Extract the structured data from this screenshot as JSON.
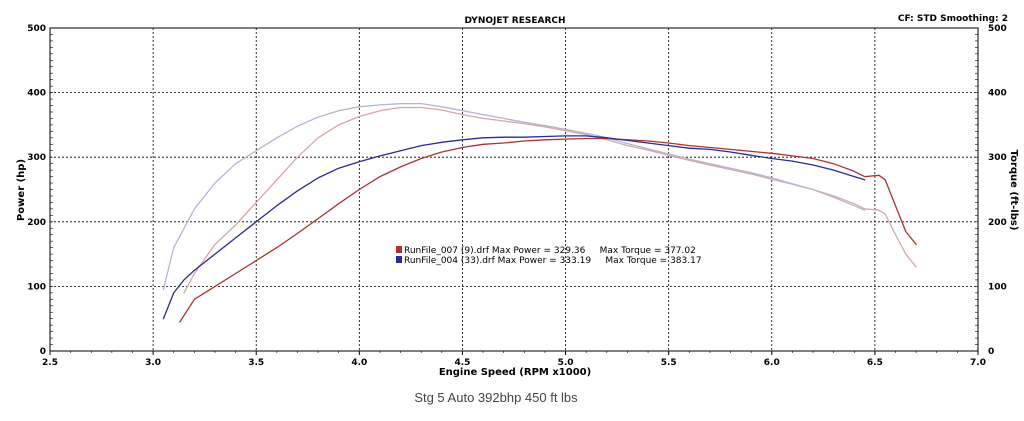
{
  "header": {
    "title": "DYNOJET RESEARCH",
    "settings": "CF: STD  Smoothing: 2"
  },
  "caption": "Stg 5 Auto 392bhp 450 ft lbs",
  "colors": {
    "run1_power": "#b03030",
    "run1_torque": "#d9a6a6",
    "run2_power": "#2a2a9a",
    "run2_torque": "#b4b4d8",
    "grid": "#000000",
    "border": "#000000"
  },
  "chart_data": {
    "type": "line",
    "title": "DYNOJET RESEARCH",
    "xlabel": "Engine Speed (RPM x1000)",
    "ylabel": "Power (hp)",
    "y2label": "Torque (ft-lbs)",
    "xlim": [
      2.5,
      7.0
    ],
    "ylim": [
      0,
      500
    ],
    "y2lim": [
      0,
      500
    ],
    "x_ticks": [
      "2.5",
      "3.0",
      "3.5",
      "4.0",
      "4.5",
      "5.0",
      "5.5",
      "6.0",
      "6.5",
      "7.0"
    ],
    "y_ticks": [
      "0",
      "100",
      "200",
      "300",
      "400",
      "500"
    ],
    "y2_ticks": [
      "0",
      "100",
      "200",
      "300",
      "400",
      "500"
    ],
    "grid": true,
    "legend": {
      "position": "center",
      "entries": [
        {
          "text": "RunFile_007 (9).drf Max Power = 329.36     Max Torque = 377.02",
          "color": "#b03030"
        },
        {
          "text": "RunFile_004 (33).drf Max Power = 333.19     Max Torque = 383.17",
          "color": "#2a2a9a"
        }
      ]
    },
    "series": [
      {
        "name": "RunFile_007 (9).drf",
        "kind": "power",
        "color": "#b03030",
        "x": [
          3.13,
          3.2,
          3.3,
          3.4,
          3.5,
          3.6,
          3.7,
          3.8,
          3.9,
          4.0,
          4.1,
          4.2,
          4.3,
          4.4,
          4.5,
          4.6,
          4.7,
          4.8,
          4.9,
          5.0,
          5.1,
          5.2,
          5.3,
          5.4,
          5.5,
          5.6,
          5.7,
          5.8,
          5.9,
          6.0,
          6.1,
          6.2,
          6.3,
          6.4,
          6.45,
          6.52,
          6.55,
          6.6,
          6.65,
          6.7
        ],
        "y": [
          45,
          80,
          100,
          120,
          140,
          160,
          182,
          205,
          228,
          250,
          270,
          285,
          298,
          308,
          315,
          320,
          322,
          325,
          327,
          328,
          329,
          329,
          327,
          325,
          322,
          318,
          315,
          312,
          309,
          306,
          302,
          298,
          290,
          278,
          270,
          272,
          265,
          225,
          185,
          165
        ]
      },
      {
        "name": "RunFile_007 (9).drf",
        "kind": "torque",
        "color": "#d9a6a6",
        "x": [
          3.15,
          3.2,
          3.3,
          3.4,
          3.5,
          3.6,
          3.7,
          3.8,
          3.9,
          4.0,
          4.1,
          4.2,
          4.3,
          4.4,
          4.5,
          4.6,
          4.7,
          4.8,
          4.9,
          5.0,
          5.1,
          5.2,
          5.3,
          5.4,
          5.5,
          5.6,
          5.7,
          5.8,
          5.9,
          6.0,
          6.1,
          6.2,
          6.3,
          6.4,
          6.45,
          6.52,
          6.55,
          6.6,
          6.65,
          6.7
        ],
        "y": [
          90,
          120,
          165,
          195,
          230,
          265,
          300,
          330,
          350,
          363,
          372,
          377,
          377,
          373,
          366,
          360,
          356,
          352,
          347,
          341,
          335,
          327,
          318,
          311,
          303,
          295,
          288,
          281,
          274,
          266,
          258,
          250,
          240,
          228,
          220,
          218,
          212,
          180,
          150,
          130
        ]
      },
      {
        "name": "RunFile_004 (33).drf",
        "kind": "power",
        "color": "#2a2a9a",
        "x": [
          3.05,
          3.1,
          3.15,
          3.2,
          3.3,
          3.4,
          3.5,
          3.6,
          3.7,
          3.8,
          3.9,
          4.0,
          4.1,
          4.2,
          4.3,
          4.4,
          4.5,
          4.6,
          4.7,
          4.8,
          4.9,
          5.0,
          5.1,
          5.2,
          5.3,
          5.4,
          5.5,
          5.6,
          5.7,
          5.8,
          5.9,
          6.0,
          6.1,
          6.2,
          6.3,
          6.4,
          6.45
        ],
        "y": [
          50,
          90,
          110,
          125,
          150,
          175,
          200,
          225,
          248,
          268,
          283,
          293,
          302,
          310,
          318,
          323,
          327,
          330,
          331,
          331,
          332,
          333,
          333,
          330,
          326,
          322,
          318,
          314,
          312,
          308,
          303,
          298,
          294,
          288,
          280,
          270,
          265
        ]
      },
      {
        "name": "RunFile_004 (33).drf",
        "kind": "torque",
        "color": "#b4b4d8",
        "x": [
          3.05,
          3.1,
          3.2,
          3.3,
          3.4,
          3.5,
          3.6,
          3.7,
          3.8,
          3.9,
          4.0,
          4.1,
          4.2,
          4.3,
          4.4,
          4.5,
          4.6,
          4.7,
          4.8,
          4.9,
          5.0,
          5.1,
          5.2,
          5.3,
          5.4,
          5.5,
          5.6,
          5.7,
          5.8,
          5.9,
          6.0,
          6.1,
          6.2,
          6.3,
          6.4,
          6.45
        ],
        "y": [
          95,
          160,
          220,
          260,
          290,
          310,
          330,
          348,
          362,
          372,
          378,
          381,
          383,
          383,
          378,
          372,
          366,
          360,
          354,
          349,
          343,
          337,
          330,
          321,
          313,
          305,
          297,
          290,
          283,
          276,
          268,
          259,
          250,
          238,
          225,
          218
        ]
      }
    ]
  }
}
